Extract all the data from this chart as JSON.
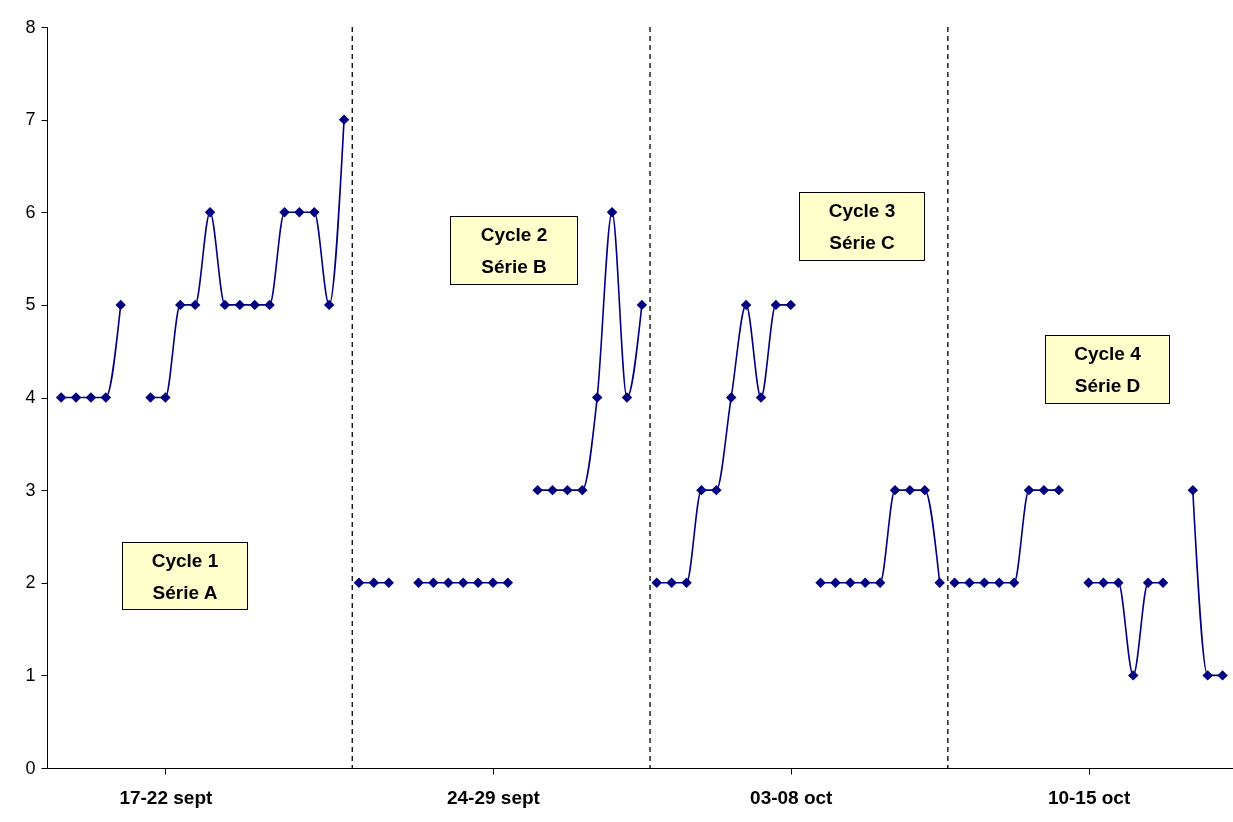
{
  "chart_data": {
    "type": "line",
    "categories": [
      null,
      null,
      null,
      null,
      null,
      null,
      null,
      "17-22 sept",
      null,
      null,
      null,
      null,
      null,
      null,
      null,
      null,
      null,
      null,
      null,
      null,
      null,
      null,
      null,
      null,
      null,
      null,
      null,
      null,
      null,
      "24-29 sept",
      null,
      null,
      null,
      null,
      null,
      null,
      null,
      null,
      null,
      null,
      null,
      null,
      null,
      null,
      null,
      null,
      null,
      null,
      null,
      "03-08 oct",
      null,
      null,
      null,
      null,
      null,
      null,
      null,
      null,
      null,
      null,
      null,
      null,
      null,
      null,
      null,
      null,
      null,
      null,
      null,
      "10-15 oct",
      null,
      null,
      null,
      null,
      null,
      null,
      null,
      null,
      null
    ],
    "series": [
      {
        "color": "#000080",
        "values": [
          4,
          4,
          4,
          4,
          5,
          null,
          4,
          4,
          5,
          5,
          6,
          5,
          5,
          5,
          5,
          6,
          6,
          6,
          5,
          7,
          null,
          null,
          null,
          null,
          null,
          null,
          null,
          null,
          null,
          null,
          null,
          null,
          null,
          null,
          null,
          null,
          null,
          null,
          null,
          null,
          null,
          null,
          null,
          null,
          null,
          null,
          null,
          null,
          null,
          null,
          null,
          null,
          null,
          null,
          null,
          null,
          null,
          null,
          null,
          null,
          null,
          null,
          null,
          null,
          null,
          null,
          null,
          null,
          null,
          null,
          null,
          null,
          null,
          null,
          null,
          null,
          null,
          null,
          null
        ]
      },
      {
        "color": "#000080",
        "values": [
          null,
          null,
          null,
          null,
          null,
          null,
          null,
          null,
          null,
          null,
          null,
          null,
          null,
          null,
          null,
          null,
          null,
          null,
          null,
          null,
          2,
          2,
          2,
          null,
          2,
          2,
          2,
          2,
          2,
          2,
          2,
          null,
          3,
          3,
          3,
          3,
          4,
          6,
          4,
          5,
          null,
          null,
          null,
          null,
          null,
          null,
          null,
          null,
          null,
          null,
          null,
          null,
          null,
          null,
          null,
          null,
          null,
          null,
          null,
          null,
          null,
          null,
          null,
          null,
          null,
          null,
          null,
          null,
          null,
          null,
          null,
          null,
          null,
          null,
          null,
          null,
          null,
          null,
          null
        ]
      },
      {
        "color": "#000080",
        "values": [
          null,
          null,
          null,
          null,
          null,
          null,
          null,
          null,
          null,
          null,
          null,
          null,
          null,
          null,
          null,
          null,
          null,
          null,
          null,
          null,
          null,
          null,
          null,
          null,
          null,
          null,
          null,
          null,
          null,
          null,
          null,
          null,
          null,
          null,
          null,
          null,
          null,
          null,
          null,
          null,
          2,
          2,
          2,
          3,
          3,
          4,
          5,
          4,
          5,
          5,
          null,
          2,
          2,
          2,
          2,
          2,
          3,
          3,
          3,
          2,
          null,
          null,
          null,
          null,
          null,
          null,
          null,
          null,
          null,
          null,
          null,
          null,
          null,
          null,
          null,
          null,
          null,
          null,
          null
        ]
      },
      {
        "color": "#000080",
        "values": [
          null,
          null,
          null,
          null,
          null,
          null,
          null,
          null,
          null,
          null,
          null,
          null,
          null,
          null,
          null,
          null,
          null,
          null,
          null,
          null,
          null,
          null,
          null,
          null,
          null,
          null,
          null,
          null,
          null,
          null,
          null,
          null,
          null,
          null,
          null,
          null,
          null,
          null,
          null,
          null,
          null,
          null,
          null,
          null,
          null,
          null,
          null,
          null,
          null,
          null,
          null,
          null,
          null,
          null,
          null,
          null,
          null,
          null,
          null,
          null,
          2,
          2,
          2,
          2,
          2,
          3,
          3,
          3,
          null,
          2,
          2,
          2,
          1,
          2,
          2,
          null,
          3,
          1,
          1
        ]
      }
    ],
    "ylim": [
      0,
      8
    ],
    "yticks": [
      0,
      1,
      2,
      3,
      4,
      5,
      6,
      7,
      8
    ],
    "grid": false,
    "legend": false,
    "marker": "diamond",
    "line_style": "solid",
    "annotations": [
      "Cycle 1\nSérie A",
      "Cycle 2\nSérie B",
      "Cycle 3\nSérie C",
      "Cycle 4\nSérie D"
    ]
  }
}
